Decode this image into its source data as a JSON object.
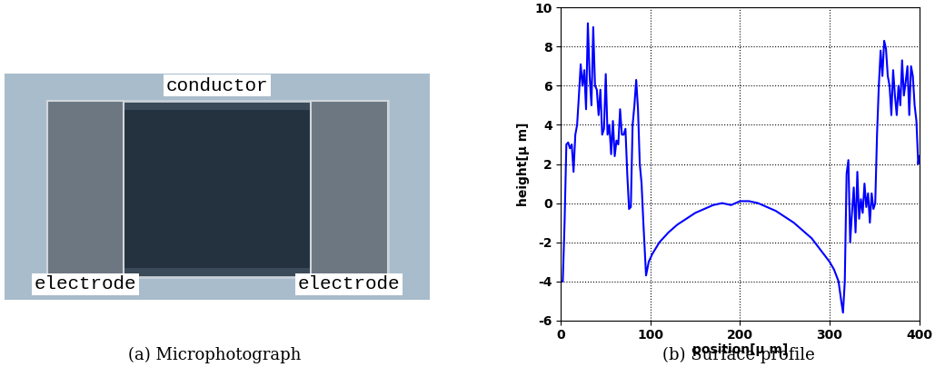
{
  "photo": {
    "caption": "(a) Microphotograph",
    "labels": [
      "conductor",
      "electrode",
      "electrode"
    ]
  },
  "chart_data": {
    "type": "line",
    "caption": "(b) Surface profile",
    "x_label": "position[μ m]",
    "y_label": "height[μ m]",
    "xlim": [
      0,
      400
    ],
    "xticks": [
      0,
      100,
      200,
      300,
      400
    ],
    "ylim": [
      -6,
      10
    ],
    "yticks": [
      -6,
      -4,
      -2,
      0,
      2,
      4,
      6,
      8,
      10
    ],
    "grid": true,
    "series": [
      {
        "color": "#0000ff",
        "x": [
          0,
          2,
          4,
          6,
          8,
          10,
          12,
          14,
          16,
          18,
          20,
          22,
          24,
          26,
          28,
          30,
          32,
          34,
          36,
          38,
          40,
          42,
          44,
          46,
          48,
          50,
          52,
          54,
          56,
          58,
          60,
          62,
          64,
          66,
          68,
          70,
          72,
          74,
          76,
          78,
          80,
          82,
          84,
          86,
          88,
          90,
          92,
          95,
          98,
          102,
          110,
          120,
          130,
          140,
          150,
          160,
          170,
          180,
          190,
          200,
          210,
          220,
          230,
          240,
          250,
          260,
          270,
          280,
          290,
          300,
          305,
          310,
          313,
          315,
          317,
          319,
          321,
          323,
          325,
          327,
          329,
          331,
          333,
          335,
          337,
          339,
          341,
          343,
          345,
          347,
          349,
          351,
          353,
          355,
          357,
          359,
          361,
          363,
          365,
          367,
          369,
          371,
          373,
          375,
          377,
          379,
          381,
          383,
          385,
          387,
          389,
          391,
          393,
          395,
          397,
          399,
          400
        ],
        "values": [
          -4,
          -4,
          -1,
          3,
          3.1,
          2.8,
          3,
          1.6,
          3.5,
          4,
          5.5,
          7.1,
          6,
          6.8,
          4.8,
          9.2,
          6.5,
          5,
          9,
          6,
          5.8,
          4.5,
          5.8,
          3.5,
          3.8,
          6.6,
          3.5,
          4,
          2.5,
          4.2,
          2.4,
          3.2,
          3,
          4.8,
          3.5,
          3.5,
          3.8,
          1.5,
          -0.3,
          -0.2,
          4,
          5,
          6.3,
          4.8,
          2,
          1,
          -1,
          -3.7,
          -3,
          -2.6,
          -2,
          -1.5,
          -1.1,
          -0.8,
          -0.5,
          -0.3,
          -0.1,
          0,
          -0.1,
          0.1,
          0.1,
          0,
          -0.2,
          -0.4,
          -0.7,
          -1,
          -1.4,
          -1.8,
          -2.4,
          -3,
          -3.4,
          -4,
          -5,
          -5.6,
          -4,
          1.5,
          2.2,
          -2,
          -0.5,
          0.8,
          -1.5,
          1.6,
          -0.8,
          0.2,
          -0.5,
          1,
          -0.2,
          0.5,
          -1,
          0.5,
          -0.3,
          0,
          3.5,
          6,
          7.8,
          6.5,
          8.3,
          7.9,
          6.5,
          6,
          4.5,
          6.8,
          5.5,
          4.5,
          6,
          5,
          7.3,
          5.5,
          6.2,
          7,
          4.5,
          7,
          6.5,
          5,
          4.2,
          2,
          2.4
        ]
      }
    ]
  }
}
